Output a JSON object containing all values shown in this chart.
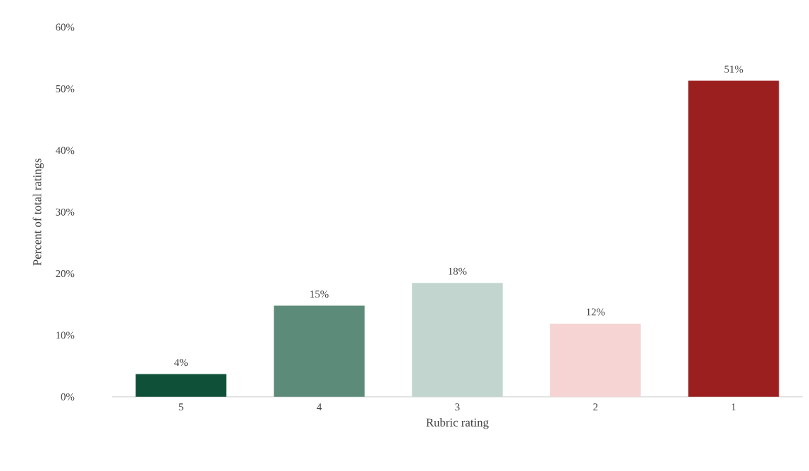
{
  "chart_data": {
    "type": "bar",
    "xlabel": "Rubric rating",
    "ylabel": "Percent of total ratings",
    "categories": [
      "5",
      "4",
      "3",
      "2",
      "1"
    ],
    "values": [
      3.7,
      14.8,
      18.5,
      11.9,
      51.3
    ],
    "value_labels": [
      "4%",
      "15%",
      "18%",
      "12%",
      "51%"
    ],
    "colors": [
      "#0f5138",
      "#5c8b79",
      "#c2d6cf",
      "#f6d4d4",
      "#9b1f1f"
    ],
    "ylim": [
      0,
      60
    ],
    "yticks": [
      {
        "value": 0,
        "label": "0%"
      },
      {
        "value": 10,
        "label": "10%"
      },
      {
        "value": 20,
        "label": "20%"
      },
      {
        "value": 30,
        "label": "30%"
      },
      {
        "value": 40,
        "label": "40%"
      },
      {
        "value": 50,
        "label": "50%"
      },
      {
        "value": 60,
        "label": "60%"
      }
    ],
    "grid": false
  }
}
